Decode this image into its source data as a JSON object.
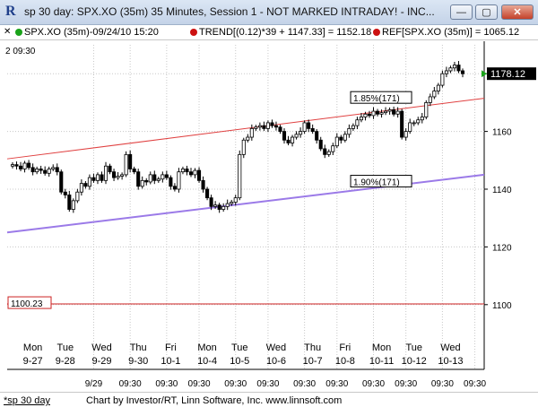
{
  "window": {
    "title": "sp 30 day: SPX.XO (35m) 35 Minutes, Session 1 - NOT MARKED INTRADAY! - INC...",
    "minimize_glyph": "—",
    "restore_glyph": "▢",
    "close_glyph": "✕"
  },
  "infobar": {
    "symbol": "SPX.XO (35m)-09/24/10 15:20",
    "trend": "TREND[(0.12)*39 + 1147.33] = 1152.18",
    "ref": "REF[SPX.XO (35m)] = 1065.12",
    "toggle_glyph": "✕",
    "colors": {
      "symbol": "#1aa31a",
      "trend": "#cc1111",
      "ref": "#cc1111"
    }
  },
  "chart_header": {
    "left_text": "2  09:30"
  },
  "footer": {
    "tab_label": "*sp 30 day",
    "credit": "Chart by Investor/RT, Linn Software, Inc. www.linnsoft.com"
  },
  "chart_data": {
    "type": "candlestick",
    "title": "",
    "ylim": [
      1090,
      1190
    ],
    "y_ticks": [
      1100,
      1120,
      1140,
      1160,
      1180
    ],
    "grid": true,
    "last_price_label": "1178.12",
    "reference_label": "1100.23",
    "reference_value": 1100.23,
    "lines": [
      {
        "name": "upper trend",
        "color": "#e04040",
        "from": [
          0,
          1150.5
        ],
        "to": [
          121,
          1171.5
        ]
      },
      {
        "name": "lower trend",
        "color": "#9b7ae8",
        "from": [
          0,
          1125
        ],
        "to": [
          121,
          1145
        ]
      }
    ],
    "channel_labels": [
      {
        "text": "1.85%(171)",
        "bar": 90,
        "value": 1171
      },
      {
        "text": "1.90%(171)",
        "bar": 90,
        "value": 1142
      }
    ],
    "day_labels": [
      {
        "day": "Mon",
        "date": "9-27",
        "bar": 5
      },
      {
        "day": "Tue",
        "date": "9-28",
        "bar": 13
      },
      {
        "day": "Wed",
        "date": "9-29",
        "bar": 22
      },
      {
        "day": "Thu",
        "date": "9-30",
        "bar": 31
      },
      {
        "day": "Fri",
        "date": "10-1",
        "bar": 39
      },
      {
        "day": "Mon",
        "date": "10-4",
        "bar": 48
      },
      {
        "day": "Tue",
        "date": "10-5",
        "bar": 56
      },
      {
        "day": "Wed",
        "date": "10-6",
        "bar": 65
      },
      {
        "day": "Thu",
        "date": "10-7",
        "bar": 74
      },
      {
        "day": "Fri",
        "date": "10-8",
        "bar": 82
      },
      {
        "day": "Mon",
        "date": "10-11",
        "bar": 91
      },
      {
        "day": "Tue",
        "date": "10-12",
        "bar": 99
      },
      {
        "day": "Wed",
        "date": "10-13",
        "bar": 108
      }
    ],
    "time_labels": [
      {
        "text": "9/29",
        "bar": 20
      },
      {
        "text": "09:30",
        "bar": 29
      },
      {
        "text": "09:30",
        "bar": 38
      },
      {
        "text": "09:30",
        "bar": 46
      },
      {
        "text": "09:30",
        "bar": 55
      },
      {
        "text": "09:30",
        "bar": 63
      },
      {
        "text": "09:30",
        "bar": 72
      },
      {
        "text": "09:30",
        "bar": 80
      },
      {
        "text": "09:30",
        "bar": 89
      },
      {
        "text": "09:30",
        "bar": 97
      },
      {
        "text": "09:30",
        "bar": 106
      },
      {
        "text": "09:30",
        "bar": 114
      }
    ],
    "closes": [
      1148.5,
      1148,
      1147,
      1149,
      1147.5,
      1146,
      1147,
      1146.5,
      1145.5,
      1147,
      1147.5,
      1146,
      1139,
      1138,
      1133,
      1136,
      1139,
      1142,
      1141,
      1144,
      1143,
      1145,
      1143,
      1148,
      1146,
      1144,
      1144.5,
      1145,
      1152,
      1147,
      1146,
      1141,
      1143,
      1142.5,
      1145,
      1143,
      1143.5,
      1145,
      1144,
      1141,
      1140,
      1146,
      1147,
      1146,
      1145,
      1146.5,
      1143,
      1140,
      1137,
      1134,
      1134.5,
      1133,
      1134,
      1135,
      1135.5,
      1137,
      1152,
      1157,
      1158,
      1161,
      1161.5,
      1162,
      1161,
      1163,
      1162,
      1161.5,
      1160,
      1157,
      1156,
      1158,
      1159,
      1160,
      1163,
      1161,
      1160,
      1157,
      1154,
      1152,
      1153,
      1155,
      1158,
      1157,
      1159,
      1161,
      1162,
      1164,
      1165,
      1166,
      1165.5,
      1167,
      1166,
      1166.5,
      1167,
      1167.5,
      1166,
      1167,
      1158,
      1160,
      1163,
      1163,
      1164,
      1165,
      1170,
      1172,
      1174,
      1176,
      1180,
      1181,
      1182,
      1183,
      1181,
      1180
    ]
  }
}
